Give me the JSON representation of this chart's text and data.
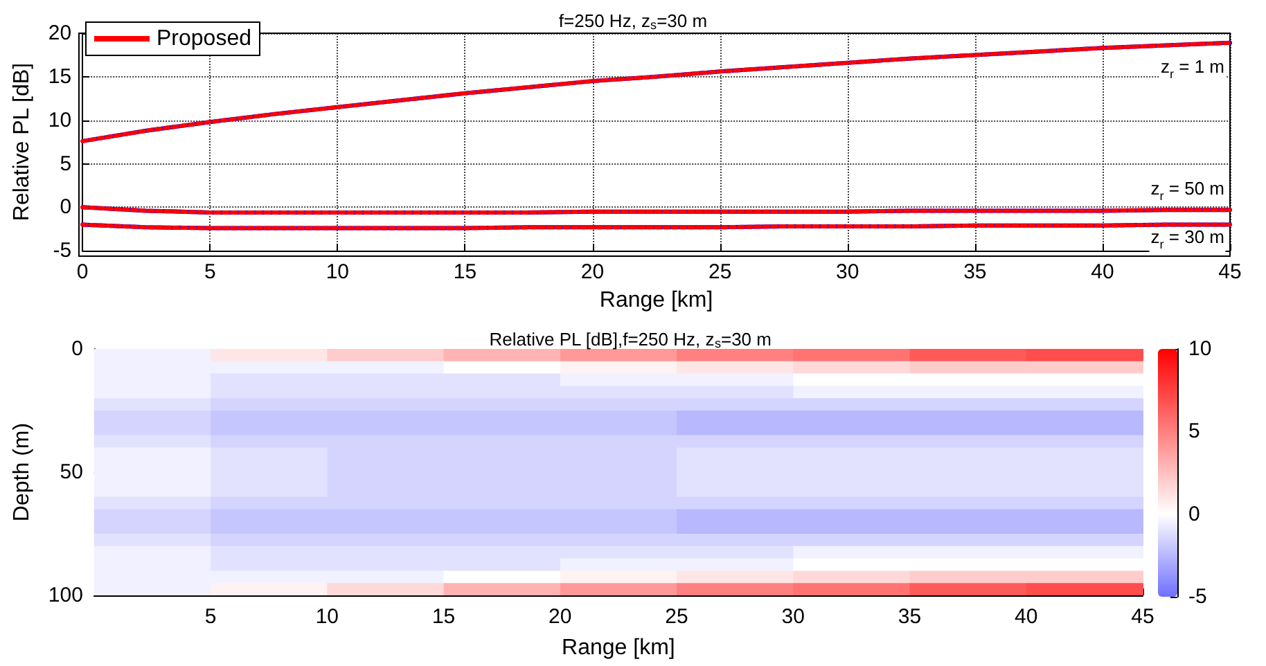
{
  "chart_data": [
    {
      "type": "line",
      "title": "f=250 Hz, z$_{s}$=30 m",
      "xlabel": "Range [km]",
      "ylabel": "Relative PL [dB]",
      "x": [
        0,
        2.5,
        5,
        7.5,
        10,
        12.5,
        15,
        17.5,
        20,
        22.5,
        25,
        27.5,
        30,
        32.5,
        35,
        37.5,
        40,
        42.5,
        45
      ],
      "series": [
        {
          "color": "#0000ff",
          "line_style": "solid",
          "values": [
            7.6,
            8.8,
            9.8,
            10.7,
            11.5,
            12.3,
            13.1,
            13.8,
            14.5,
            15.0,
            15.6,
            16.1,
            16.6,
            17.1,
            17.5,
            17.9,
            18.3,
            18.6,
            18.9
          ]
        },
        {
          "color": "#0000ff",
          "line_style": "solid",
          "values": [
            0,
            -0.4,
            -0.6,
            -0.6,
            -0.6,
            -0.6,
            -0.6,
            -0.6,
            -0.5,
            -0.5,
            -0.5,
            -0.5,
            -0.5,
            -0.4,
            -0.4,
            -0.4,
            -0.4,
            -0.3,
            -0.3
          ]
        },
        {
          "color": "#0000ff",
          "line_style": "solid",
          "values": [
            -2,
            -2.3,
            -2.4,
            -2.4,
            -2.4,
            -2.4,
            -2.4,
            -2.3,
            -2.3,
            -2.3,
            -2.3,
            -2.2,
            -2.2,
            -2.2,
            -2.1,
            -2.1,
            -2.1,
            -2.0,
            -2.0
          ]
        },
        {
          "name": "Proposed",
          "color": "#ff0000",
          "line_style": "dotted",
          "values": [
            7.6,
            8.8,
            9.8,
            10.7,
            11.5,
            12.3,
            13.1,
            13.8,
            14.5,
            15.0,
            15.6,
            16.1,
            16.6,
            17.1,
            17.5,
            17.9,
            18.3,
            18.6,
            18.9
          ]
        },
        {
          "color": "#ff0000",
          "line_style": "dotted",
          "values": [
            0,
            -0.4,
            -0.6,
            -0.6,
            -0.6,
            -0.6,
            -0.6,
            -0.6,
            -0.5,
            -0.5,
            -0.5,
            -0.5,
            -0.5,
            -0.4,
            -0.4,
            -0.4,
            -0.4,
            -0.3,
            -0.3
          ]
        },
        {
          "color": "#ff0000",
          "line_style": "dotted",
          "values": [
            -2,
            -2.3,
            -2.4,
            -2.4,
            -2.4,
            -2.4,
            -2.4,
            -2.3,
            -2.3,
            -2.3,
            -2.3,
            -2.2,
            -2.2,
            -2.2,
            -2.1,
            -2.1,
            -2.1,
            -2.0,
            -2.0
          ]
        }
      ],
      "xlim": [
        0,
        45
      ],
      "xticks": [
        0,
        5,
        10,
        15,
        20,
        25,
        30,
        35,
        40,
        45
      ],
      "ylim": [
        -5,
        20
      ],
      "yticks": [
        -5,
        0,
        5,
        10,
        15,
        20
      ],
      "grid": true,
      "legend": "top left",
      "marker": "none",
      "annotations": [
        "z$_{r}$ = 1 m",
        "z$_{r}$ = 50 m",
        "z$_{r}$ = 30 m"
      ]
    },
    {
      "type": "heatmap",
      "title": "Relative PL [dB],f=250 Hz, z$_{s}$=30 m",
      "xlabel": "Range [km]",
      "ylabel": "Depth (m)",
      "x": [
        2.5,
        7.5,
        12.5,
        17.5,
        22.5,
        27.5,
        32.5,
        37.5,
        42.5
      ],
      "y": [
        2.5,
        7.5,
        12.5,
        17.5,
        22.5,
        27.5,
        32.5,
        37.5,
        42.5,
        47.5,
        52.5,
        57.5,
        62.5,
        67.5,
        72.5,
        77.5,
        82.5,
        87.5,
        92.5,
        97.5
      ],
      "cells": [
        [
          -0.5,
          1,
          2,
          3,
          4,
          5,
          5.5,
          6.5,
          7
        ],
        [
          -0.5,
          -0.5,
          -0.5,
          0,
          0.5,
          1,
          1.5,
          2,
          2
        ],
        [
          -0.5,
          -1,
          -1,
          -1,
          -0.5,
          -0.5,
          0,
          0,
          0
        ],
        [
          -0.5,
          -1,
          -1,
          -1,
          -1,
          -1,
          -0.5,
          -0.5,
          -0.5
        ],
        [
          -1,
          -1.5,
          -1.5,
          -1.5,
          -1.5,
          -1.5,
          -1.5,
          -1.5,
          -1.5
        ],
        [
          -1.5,
          -2,
          -2,
          -2,
          -2,
          -2.5,
          -2.5,
          -2.5,
          -2.5
        ],
        [
          -1.5,
          -2,
          -2,
          -2,
          -2,
          -2.5,
          -2.5,
          -2.5,
          -2.5
        ],
        [
          -1,
          -1.5,
          -1.5,
          -1.5,
          -1.5,
          -1.5,
          -1.5,
          -1.5,
          -1.5
        ],
        [
          -0.5,
          -1,
          -1.5,
          -1.5,
          -1.5,
          -1,
          -1,
          -1,
          -1
        ],
        [
          -0.5,
          -1,
          -1.5,
          -1.5,
          -1.5,
          -1,
          -1,
          -1,
          -1
        ],
        [
          -0.5,
          -1,
          -1.5,
          -1.5,
          -1.5,
          -1,
          -1,
          -1,
          -1
        ],
        [
          -0.5,
          -1,
          -1.5,
          -1.5,
          -1.5,
          -1,
          -1,
          -1,
          -1
        ],
        [
          -1,
          -1.5,
          -1.5,
          -1.5,
          -1.5,
          -1.5,
          -1.5,
          -1.5,
          -1.5
        ],
        [
          -1.5,
          -2,
          -2,
          -2,
          -2,
          -2.5,
          -2.5,
          -2.5,
          -2.5
        ],
        [
          -1.5,
          -2,
          -2,
          -2,
          -2,
          -2.5,
          -2.5,
          -2.5,
          -2.5
        ],
        [
          -1,
          -1.5,
          -1.5,
          -1.5,
          -1.5,
          -1.5,
          -1.5,
          -1.5,
          -1.5
        ],
        [
          -0.5,
          -1,
          -1,
          -1,
          -1,
          -1,
          -0.5,
          -0.5,
          -0.5
        ],
        [
          -0.5,
          -1,
          -1,
          -1,
          -0.5,
          -0.5,
          0,
          0,
          0
        ],
        [
          -0.5,
          -0.5,
          -0.5,
          0,
          0.5,
          1,
          1.5,
          2,
          2
        ],
        [
          -0.5,
          0.5,
          1.5,
          3,
          4,
          5,
          5.5,
          6.5,
          7
        ]
      ],
      "xlim": [
        0,
        45
      ],
      "xticks": [
        5,
        10,
        15,
        20,
        25,
        30,
        35,
        40,
        45
      ],
      "ylim": [
        100,
        0
      ],
      "yticks": [
        0,
        50,
        100
      ],
      "clim": [
        -5,
        10
      ],
      "cticks": [
        -5,
        0,
        5,
        10
      ]
    }
  ]
}
